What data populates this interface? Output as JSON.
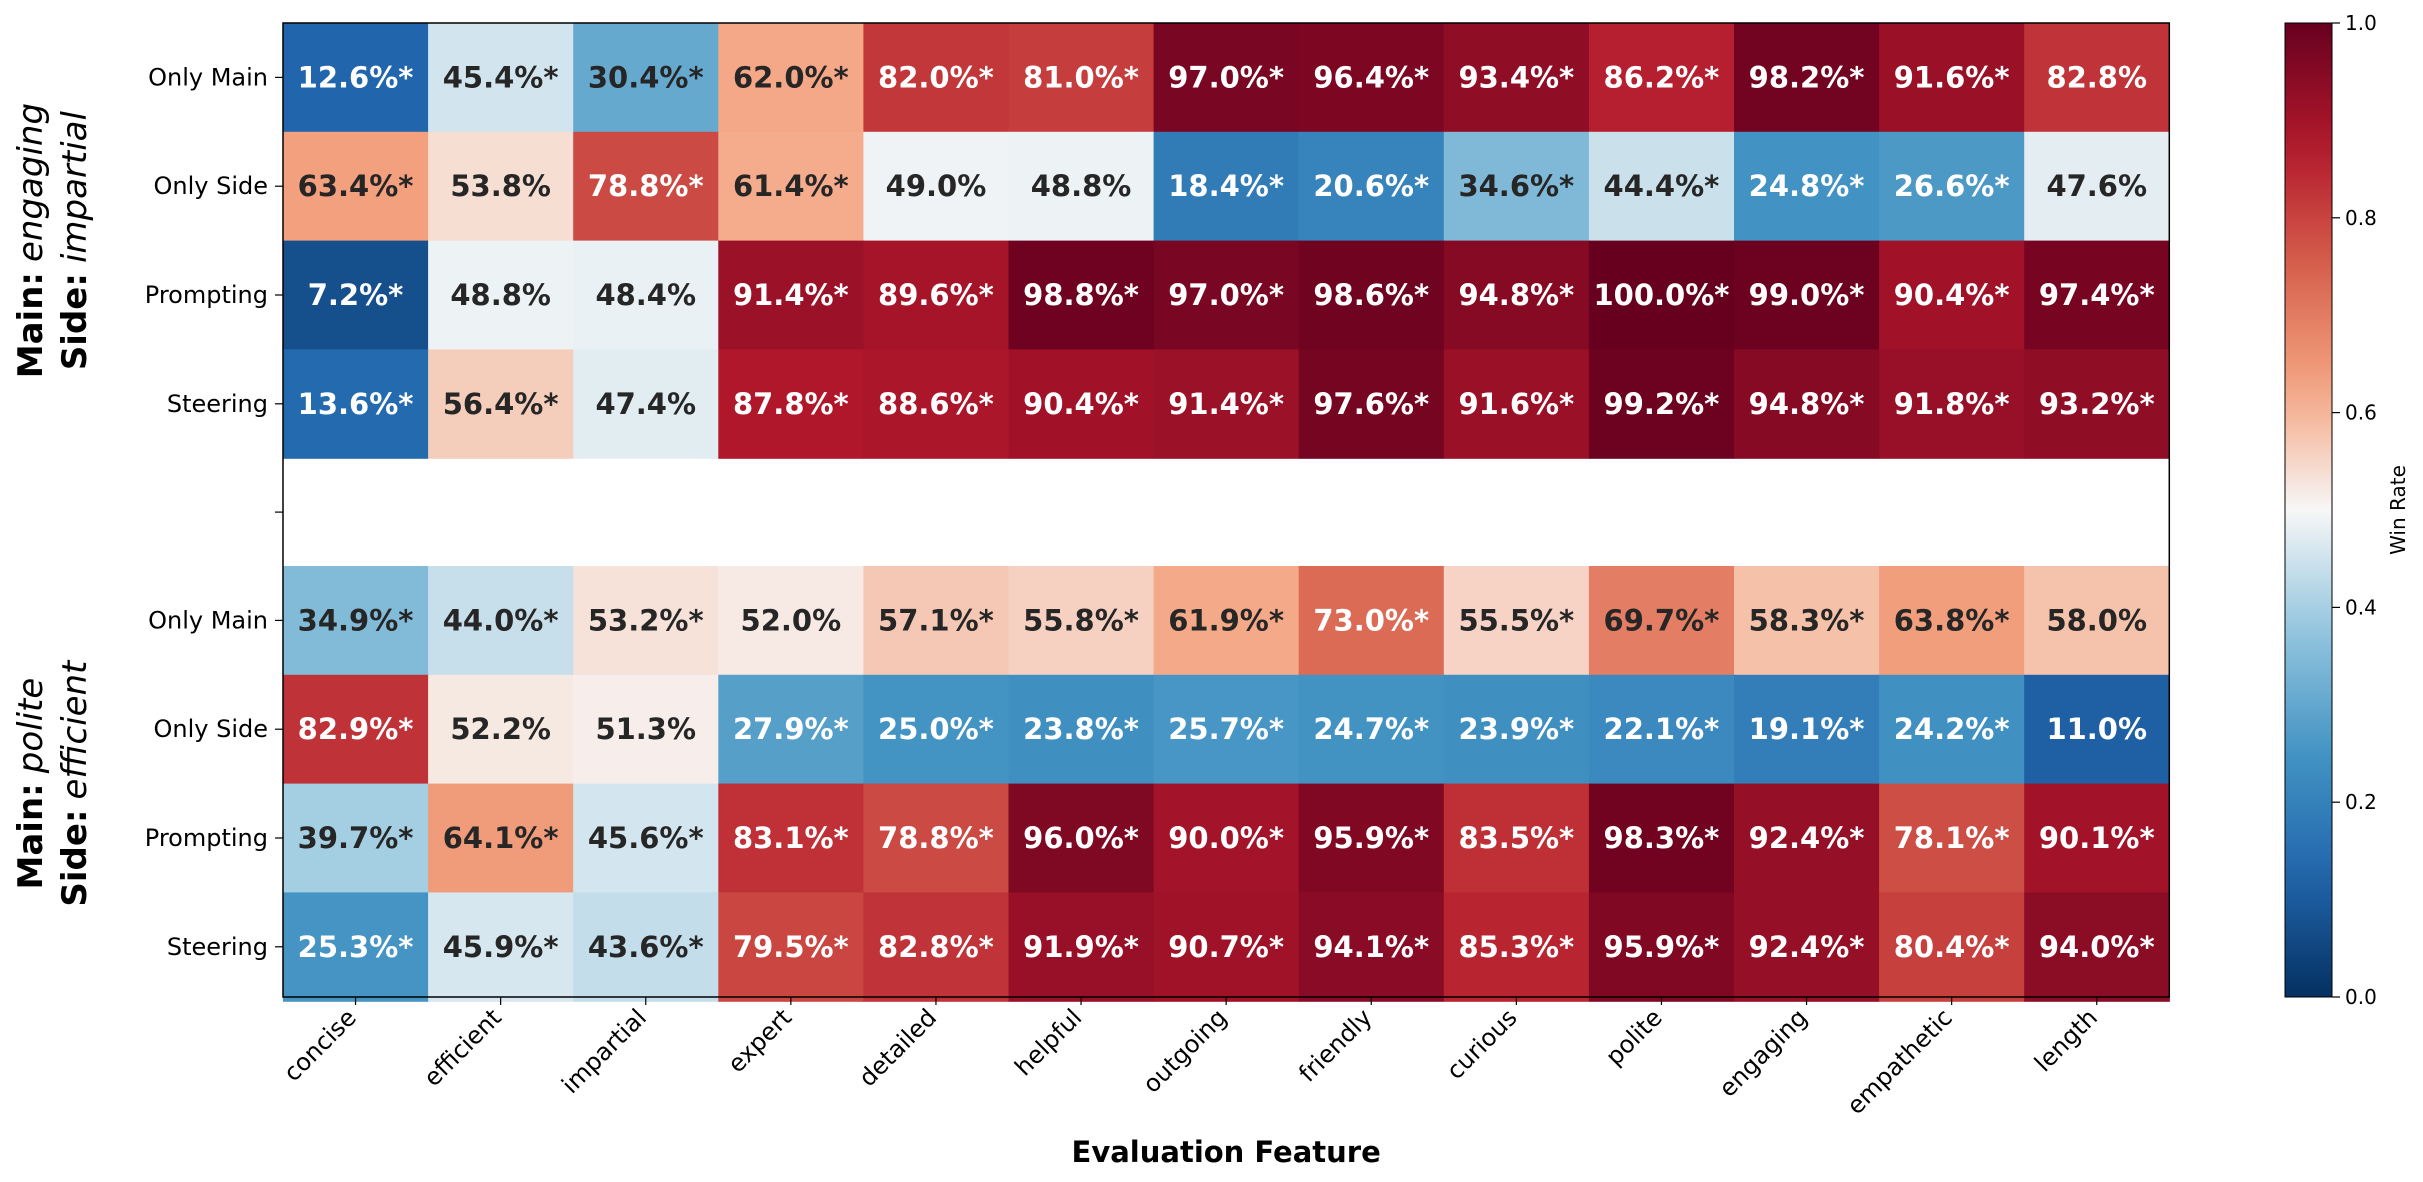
{
  "chart_data": {
    "type": "heatmap",
    "xlabel": "Evaluation Feature",
    "columns": [
      "concise",
      "efficient",
      "impartial",
      "expert",
      "detailed",
      "helpful",
      "outgoing",
      "friendly",
      "curious",
      "polite",
      "engaging",
      "empathetic",
      "length"
    ],
    "colorbar": {
      "label": "Win Rate",
      "range": [
        0.0,
        1.0
      ],
      "ticks": [
        "0.0",
        "0.2",
        "0.4",
        "0.6",
        "0.8",
        "1.0"
      ],
      "colormap": "RdBu_r"
    },
    "groups": [
      {
        "title": {
          "main_prefix": "Main:",
          "main_value": "engaging",
          "side_prefix": "Side:",
          "side_value": "impartial"
        },
        "rows": [
          {
            "label": "Only Main",
            "values": [
              0.126,
              0.454,
              0.304,
              0.62,
              0.82,
              0.81,
              0.97,
              0.964,
              0.934,
              0.862,
              0.982,
              0.916,
              0.828
            ],
            "texts": [
              "12.6%*",
              "45.4%*",
              "30.4%*",
              "62.0%*",
              "82.0%*",
              "81.0%*",
              "97.0%*",
              "96.4%*",
              "93.4%*",
              "86.2%*",
              "98.2%*",
              "91.6%*",
              "82.8%"
            ]
          },
          {
            "label": "Only Side",
            "values": [
              0.634,
              0.538,
              0.788,
              0.614,
              0.49,
              0.488,
              0.184,
              0.206,
              0.346,
              0.444,
              0.248,
              0.266,
              0.476
            ],
            "texts": [
              "63.4%*",
              "53.8%",
              "78.8%*",
              "61.4%*",
              "49.0%",
              "48.8%",
              "18.4%*",
              "20.6%*",
              "34.6%*",
              "44.4%*",
              "24.8%*",
              "26.6%*",
              "47.6%"
            ]
          },
          {
            "label": "Prompting",
            "values": [
              0.072,
              0.488,
              0.484,
              0.914,
              0.896,
              0.988,
              0.97,
              0.986,
              0.948,
              1.0,
              0.99,
              0.904,
              0.974
            ],
            "texts": [
              "7.2%*",
              "48.8%",
              "48.4%",
              "91.4%*",
              "89.6%*",
              "98.8%*",
              "97.0%*",
              "98.6%*",
              "94.8%*",
              "100.0%*",
              "99.0%*",
              "90.4%*",
              "97.4%*"
            ]
          },
          {
            "label": "Steering",
            "values": [
              0.136,
              0.564,
              0.474,
              0.878,
              0.886,
              0.904,
              0.914,
              0.976,
              0.916,
              0.992,
              0.948,
              0.918,
              0.932
            ],
            "texts": [
              "13.6%*",
              "56.4%*",
              "47.4%",
              "87.8%*",
              "88.6%*",
              "90.4%*",
              "91.4%*",
              "97.6%*",
              "91.6%*",
              "99.2%*",
              "94.8%*",
              "91.8%*",
              "93.2%*"
            ]
          }
        ]
      },
      {
        "title": {
          "main_prefix": "Main:",
          "main_value": "polite",
          "side_prefix": "Side:",
          "side_value": "efficient"
        },
        "rows": [
          {
            "label": "Only Main",
            "values": [
              0.349,
              0.44,
              0.532,
              0.52,
              0.571,
              0.558,
              0.619,
              0.73,
              0.555,
              0.697,
              0.583,
              0.638,
              0.58
            ],
            "texts": [
              "34.9%*",
              "44.0%*",
              "53.2%*",
              "52.0%",
              "57.1%*",
              "55.8%*",
              "61.9%*",
              "73.0%*",
              "55.5%*",
              "69.7%*",
              "58.3%*",
              "63.8%*",
              "58.0%"
            ]
          },
          {
            "label": "Only Side",
            "values": [
              0.829,
              0.522,
              0.513,
              0.279,
              0.25,
              0.238,
              0.257,
              0.247,
              0.239,
              0.221,
              0.191,
              0.242,
              0.11
            ],
            "texts": [
              "82.9%*",
              "52.2%",
              "51.3%",
              "27.9%*",
              "25.0%*",
              "23.8%*",
              "25.7%*",
              "24.7%*",
              "23.9%*",
              "22.1%*",
              "19.1%*",
              "24.2%*",
              "11.0%"
            ]
          },
          {
            "label": "Prompting",
            "values": [
              0.397,
              0.641,
              0.456,
              0.831,
              0.788,
              0.96,
              0.9,
              0.959,
              0.835,
              0.983,
              0.924,
              0.781,
              0.901
            ],
            "texts": [
              "39.7%*",
              "64.1%*",
              "45.6%*",
              "83.1%*",
              "78.8%*",
              "96.0%*",
              "90.0%*",
              "95.9%*",
              "83.5%*",
              "98.3%*",
              "92.4%*",
              "78.1%*",
              "90.1%*"
            ]
          },
          {
            "label": "Steering",
            "values": [
              0.253,
              0.459,
              0.436,
              0.795,
              0.828,
              0.919,
              0.907,
              0.941,
              0.853,
              0.959,
              0.924,
              0.804,
              0.94
            ],
            "texts": [
              "25.3%*",
              "45.9%*",
              "43.6%*",
              "79.5%*",
              "82.8%*",
              "91.9%*",
              "90.7%*",
              "94.1%*",
              "85.3%*",
              "95.9%*",
              "92.4%*",
              "80.4%*",
              "94.0%*"
            ]
          }
        ]
      }
    ]
  }
}
